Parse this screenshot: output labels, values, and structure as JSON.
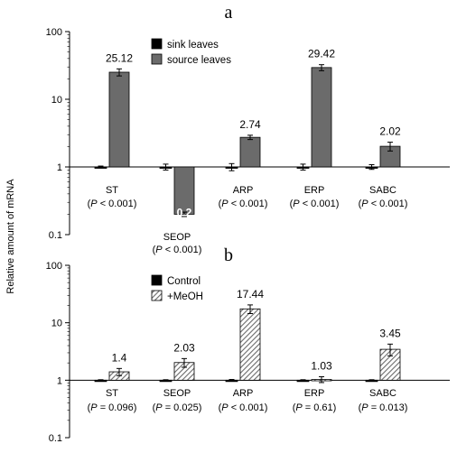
{
  "y_axis_label": "Relative amount of mRNA",
  "colors": {
    "black": "#000000",
    "gray": "#6b6b6b",
    "hatch": "#9a9a9a"
  },
  "chart_data": [
    {
      "panel_label": "a",
      "type": "bar",
      "y_scale": "log",
      "ylim": [
        0.1,
        100
      ],
      "y_ticks": [
        "0.1",
        "1",
        "10",
        "100"
      ],
      "categories": [
        "ST",
        "SEOP",
        "ARP",
        "ERP",
        "SABC"
      ],
      "p_values": [
        "(P < 0.001)",
        "(P < 0.001)",
        "(P < 0.001)",
        "(P < 0.001)",
        "(P < 0.001)"
      ],
      "legend_position": "top-center",
      "series": [
        {
          "name": "sink leaves",
          "style": "solid-black",
          "values": [
            1,
            1,
            1,
            1,
            1
          ],
          "errors": [
            0.03,
            0.1,
            0.12,
            0.1,
            0.08
          ]
        },
        {
          "name": "source leaves",
          "style": "solid-gray",
          "values": [
            25.12,
            0.2,
            2.74,
            29.42,
            2.02
          ],
          "errors": [
            3,
            0.015,
            0.2,
            3,
            0.3
          ]
        }
      ],
      "value_labels": [
        "25.12",
        "0.2",
        "2.74",
        "29.42",
        "2.02"
      ]
    },
    {
      "panel_label": "b",
      "type": "bar",
      "y_scale": "log",
      "ylim": [
        0.1,
        100
      ],
      "y_ticks": [
        "0.1",
        "1",
        "10",
        "100"
      ],
      "categories": [
        "ST",
        "SEOP",
        "ARP",
        "ERP",
        "SABC"
      ],
      "p_values": [
        "(P = 0.096)",
        "(P = 0.025)",
        "(P < 0.001)",
        "(P = 0.61)",
        "(P = 0.013)"
      ],
      "legend_position": "top-left",
      "series": [
        {
          "name": "Control",
          "style": "solid-black",
          "values": [
            1,
            1,
            1,
            1,
            1
          ],
          "errors": [
            0.02,
            0.02,
            0.03,
            0.02,
            0.02
          ]
        },
        {
          "name": "+MeOH",
          "style": "hatched",
          "values": [
            1.4,
            2.03,
            17.44,
            1.03,
            3.45
          ],
          "errors": [
            0.2,
            0.35,
            3,
            0.12,
            0.8
          ]
        }
      ],
      "value_labels": [
        "1.4",
        "2.03",
        "17.44",
        "1.03",
        "3.45"
      ]
    }
  ]
}
